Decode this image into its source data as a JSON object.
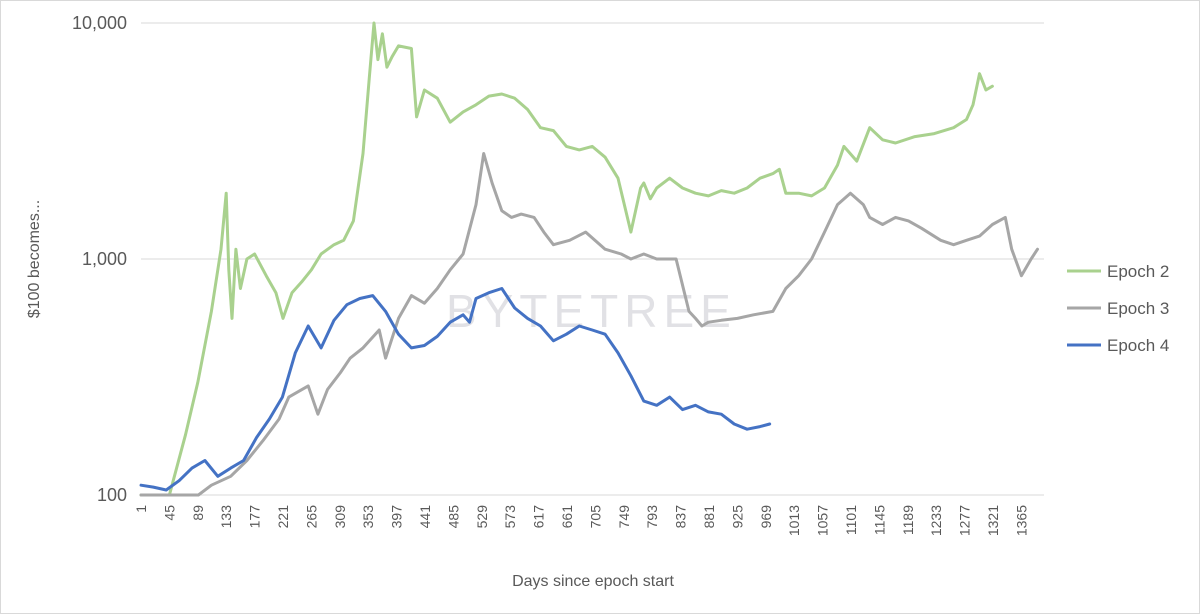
{
  "chart_data": {
    "type": "line",
    "title": "",
    "xlabel": "Days since epoch start",
    "ylabel": "$100 becomes...",
    "y_scale": "log",
    "ylim": [
      100,
      10000
    ],
    "xlim": [
      1,
      1400
    ],
    "y_ticks": [
      "100",
      "1,000",
      "10,000"
    ],
    "y_tick_values": [
      100,
      1000,
      10000
    ],
    "x_ticks": [
      "1",
      "45",
      "89",
      "133",
      "177",
      "221",
      "265",
      "309",
      "353",
      "397",
      "441",
      "485",
      "529",
      "573",
      "617",
      "661",
      "705",
      "749",
      "793",
      "837",
      "881",
      "925",
      "969",
      "1013",
      "1057",
      "1101",
      "1145",
      "1189",
      "1233",
      "1277",
      "1321",
      "1365"
    ],
    "grid": "horizontal",
    "legend_position": "right",
    "watermark": "BYTETREE",
    "series": [
      {
        "name": "Epoch 2",
        "color": "#a9d18e",
        "x": [
          1,
          20,
          45,
          70,
          89,
          110,
          125,
          133,
          137,
          142,
          148,
          155,
          165,
          177,
          195,
          210,
          221,
          235,
          250,
          265,
          280,
          300,
          315,
          330,
          345,
          355,
          362,
          368,
          375,
          382,
          390,
          400,
          420,
          428,
          440,
          460,
          480,
          500,
          520,
          540,
          560,
          580,
          600,
          620,
          640,
          660,
          680,
          700,
          720,
          740,
          760,
          775,
          780,
          790,
          800,
          820,
          840,
          860,
          880,
          900,
          920,
          940,
          960,
          980,
          990,
          1000,
          1020,
          1040,
          1060,
          1080,
          1090,
          1110,
          1130,
          1150,
          1170,
          1200,
          1230,
          1260,
          1280,
          1290,
          1300,
          1310,
          1320
        ],
        "y": [
          100,
          95,
          100,
          180,
          300,
          600,
          1100,
          1900,
          900,
          560,
          1100,
          750,
          1000,
          1050,
          850,
          720,
          560,
          720,
          800,
          900,
          1050,
          1150,
          1200,
          1450,
          2800,
          6000,
          10000,
          7000,
          9000,
          6500,
          7200,
          8000,
          7800,
          4000,
          5200,
          4800,
          3800,
          4200,
          4500,
          4900,
          5000,
          4800,
          4300,
          3600,
          3500,
          3000,
          2900,
          3000,
          2700,
          2200,
          1300,
          2000,
          2100,
          1800,
          2000,
          2200,
          2000,
          1900,
          1850,
          1950,
          1900,
          2000,
          2200,
          2300,
          2400,
          1900,
          1900,
          1850,
          2000,
          2500,
          3000,
          2600,
          3600,
          3200,
          3100,
          3300,
          3400,
          3600,
          3900,
          4500,
          6100,
          5200,
          5400
        ]
      },
      {
        "name": "Epoch 3",
        "color": "#a6a6a6",
        "x": [
          1,
          60,
          90,
          110,
          140,
          165,
          190,
          215,
          230,
          260,
          275,
          290,
          310,
          325,
          345,
          370,
          380,
          400,
          420,
          440,
          460,
          480,
          500,
          520,
          532,
          545,
          560,
          575,
          590,
          610,
          625,
          640,
          665,
          690,
          720,
          745,
          760,
          780,
          800,
          830,
          850,
          860,
          870,
          880,
          900,
          925,
          950,
          980,
          1000,
          1020,
          1040,
          1060,
          1080,
          1100,
          1120,
          1130,
          1150,
          1170,
          1190,
          1210,
          1240,
          1260,
          1280,
          1300,
          1320,
          1340,
          1350,
          1365,
          1380,
          1390
        ],
        "y": [
          100,
          85,
          95,
          110,
          120,
          140,
          170,
          210,
          260,
          290,
          220,
          280,
          330,
          380,
          420,
          500,
          380,
          560,
          700,
          650,
          750,
          900,
          1050,
          1700,
          2800,
          2100,
          1600,
          1500,
          1550,
          1500,
          1300,
          1150,
          1200,
          1300,
          1100,
          1050,
          1000,
          1050,
          1000,
          1000,
          600,
          560,
          520,
          540,
          550,
          560,
          580,
          600,
          750,
          850,
          1000,
          1300,
          1700,
          1900,
          1700,
          1500,
          1400,
          1500,
          1450,
          1350,
          1200,
          1150,
          1200,
          1250,
          1400,
          1500,
          1100,
          850,
          1000,
          1100
        ]
      },
      {
        "name": "Epoch 4",
        "color": "#4472c4",
        "x": [
          1,
          20,
          40,
          60,
          80,
          100,
          120,
          140,
          160,
          180,
          200,
          220,
          240,
          260,
          280,
          300,
          320,
          340,
          360,
          380,
          400,
          420,
          440,
          460,
          480,
          500,
          510,
          520,
          540,
          560,
          580,
          600,
          620,
          640,
          660,
          680,
          700,
          720,
          740,
          760,
          780,
          800,
          820,
          840,
          860,
          880,
          900,
          920,
          940,
          960,
          975
        ],
        "y": [
          110,
          108,
          105,
          115,
          130,
          140,
          120,
          130,
          140,
          175,
          210,
          260,
          400,
          520,
          420,
          550,
          640,
          680,
          700,
          600,
          480,
          420,
          430,
          470,
          540,
          580,
          540,
          680,
          720,
          750,
          620,
          560,
          520,
          450,
          480,
          520,
          500,
          480,
          400,
          320,
          250,
          240,
          260,
          230,
          240,
          225,
          220,
          200,
          190,
          195,
          200
        ]
      }
    ]
  }
}
